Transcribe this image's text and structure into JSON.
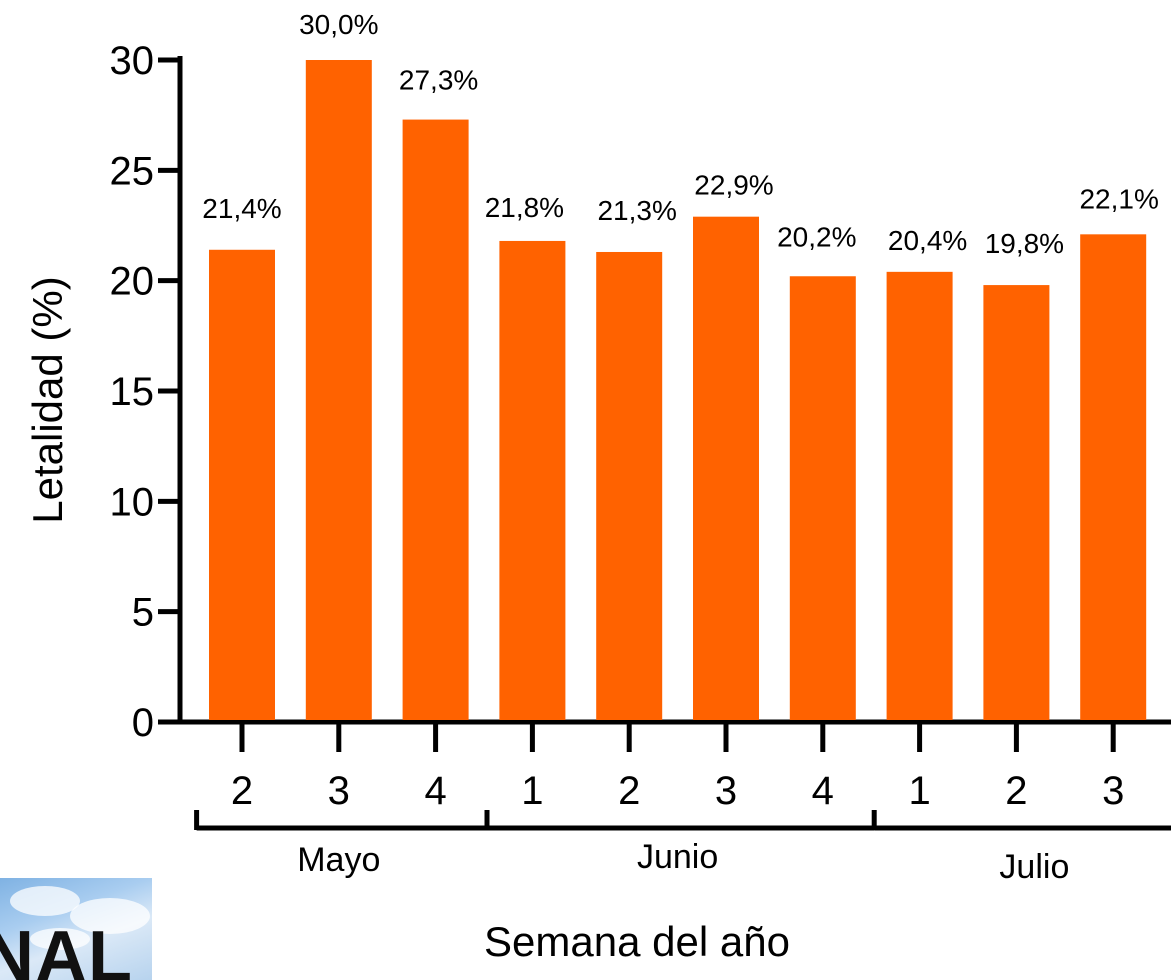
{
  "chart_data": {
    "type": "bar",
    "categories": [
      "2",
      "3",
      "4",
      "1",
      "2",
      "3",
      "4",
      "1",
      "2",
      "3"
    ],
    "groups": [
      {
        "label": "Mayo",
        "count": 3
      },
      {
        "label": "Junio",
        "count": 4
      },
      {
        "label": "Julio",
        "count": 3
      }
    ],
    "values": [
      21.4,
      30.0,
      27.3,
      21.8,
      21.3,
      22.9,
      20.2,
      20.4,
      19.8,
      22.1
    ],
    "data_labels": [
      "21,4%",
      "30,0%",
      "27,3%",
      "21,8%",
      "21,3%",
      "22,9%",
      "20,2%",
      "20,4%",
      "19,8%",
      "22,1%"
    ],
    "ylabel": "Letalidad (%)",
    "xlabel": "Semana del año",
    "ylim": [
      0,
      30
    ],
    "yticks": [
      0,
      5,
      10,
      15,
      20,
      25,
      30
    ],
    "bar_color": "#ff6200",
    "grid": false,
    "legend": false
  },
  "logo": {
    "text": "NAL"
  }
}
